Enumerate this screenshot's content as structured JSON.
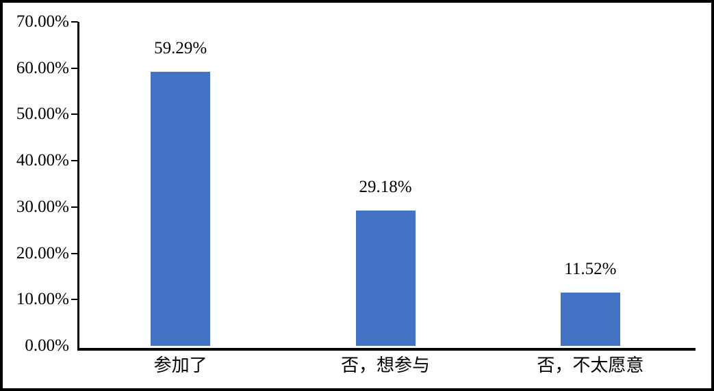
{
  "chart_data": {
    "type": "bar",
    "title": "",
    "categories": [
      "参加了",
      "否，想参与",
      "否，不太愿意"
    ],
    "values": [
      59.29,
      29.18,
      11.52
    ],
    "data_labels": [
      "59.29%",
      "29.18%",
      "11.52%"
    ],
    "series_name": "",
    "xlabel": "",
    "ylabel": "",
    "ylim": [
      0,
      70
    ],
    "y_tick_step": 10,
    "y_tick_labels": [
      "0.00%",
      "10.00%",
      "20.00%",
      "30.00%",
      "40.00%",
      "50.00%",
      "60.00%",
      "70.00%"
    ],
    "grid": "off",
    "legend": "none",
    "bar_color": "#4472C4",
    "axis_color": "#000000",
    "frame_color": "#000000",
    "background_color": "#FFFFFF"
  }
}
